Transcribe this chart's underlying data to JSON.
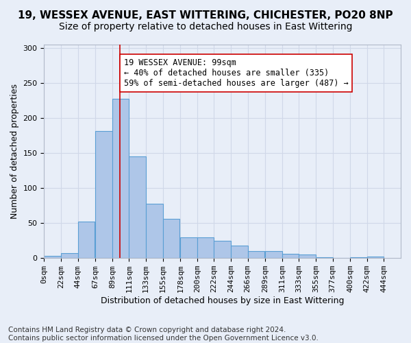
{
  "title_line1": "19, WESSEX AVENUE, EAST WITTERING, CHICHESTER, PO20 8NP",
  "title_line2": "Size of property relative to detached houses in East Wittering",
  "xlabel": "Distribution of detached houses by size in East Wittering",
  "ylabel": "Number of detached properties",
  "footer": "Contains HM Land Registry data © Crown copyright and database right 2024.\nContains public sector information licensed under the Open Government Licence v3.0.",
  "annotation_line1": "19 WESSEX AVENUE: 99sqm",
  "annotation_line2": "← 40% of detached houses are smaller (335)",
  "annotation_line3": "59% of semi-detached houses are larger (487) →",
  "property_size": 99,
  "bar_left_edges": [
    0,
    22,
    44,
    67,
    89,
    111,
    133,
    155,
    178,
    200,
    222,
    244,
    266,
    289,
    311,
    333,
    355,
    377,
    400,
    422
  ],
  "bar_heights": [
    3,
    7,
    52,
    182,
    228,
    145,
    78,
    56,
    30,
    30,
    25,
    18,
    10,
    10,
    6,
    5,
    1,
    0,
    1,
    2
  ],
  "bin_width": 22,
  "bar_facecolor": "#aec6e8",
  "bar_edgecolor": "#5a9fd4",
  "vline_color": "#cc0000",
  "vline_x": 99,
  "ylim": [
    0,
    305
  ],
  "yticks": [
    0,
    50,
    100,
    150,
    200,
    250,
    300
  ],
  "xtick_positions": [
    0,
    22,
    44,
    67,
    89,
    111,
    133,
    155,
    178,
    200,
    222,
    244,
    266,
    289,
    311,
    333,
    355,
    377,
    400,
    422,
    444
  ],
  "xtick_labels": [
    "0sqm",
    "22sqm",
    "44sqm",
    "67sqm",
    "89sqm",
    "111sqm",
    "133sqm",
    "155sqm",
    "178sqm",
    "200sqm",
    "222sqm",
    "244sqm",
    "266sqm",
    "289sqm",
    "311sqm",
    "333sqm",
    "355sqm",
    "377sqm",
    "400sqm",
    "422sqm",
    "444sqm"
  ],
  "grid_color": "#d0d8e8",
  "background_color": "#e8eef8",
  "annotation_box_color": "#ffffff",
  "annotation_box_edgecolor": "#cc0000",
  "title_fontsize": 11,
  "subtitle_fontsize": 10,
  "axis_label_fontsize": 9,
  "tick_fontsize": 8,
  "annotation_fontsize": 8.5,
  "footer_fontsize": 7.5
}
